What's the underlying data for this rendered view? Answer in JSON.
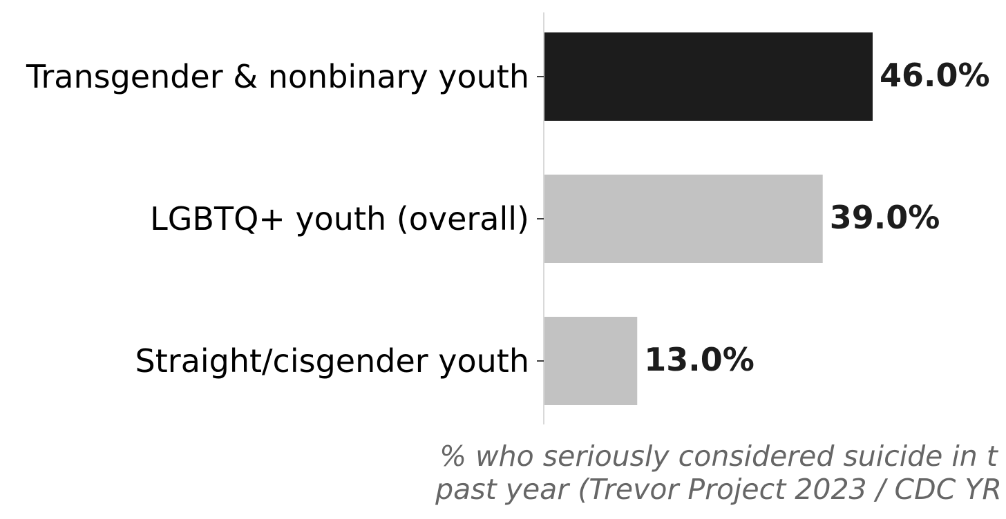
{
  "chart_data": {
    "type": "bar",
    "orientation": "horizontal",
    "categories": [
      "Transgender & nonbinary youth",
      "LGBTQ+ youth (overall)",
      "Straight/cisgender youth"
    ],
    "values": [
      46.0,
      39.0,
      13.0
    ],
    "value_labels": [
      "46.0%",
      "39.0%",
      "13.0%"
    ],
    "xlabel_lines": [
      "% who seriously considered suicide in t",
      "past year (Trevor Project 2023 / CDC YR"
    ],
    "xlim": [
      0,
      100
    ],
    "grid": false,
    "colors": {
      "highlight": "#1c1c1c",
      "base": "#c2c2c2",
      "axis": "#d9d9d9",
      "label": "#000000",
      "xlabel": "#666666"
    },
    "highlight_index": 0
  }
}
